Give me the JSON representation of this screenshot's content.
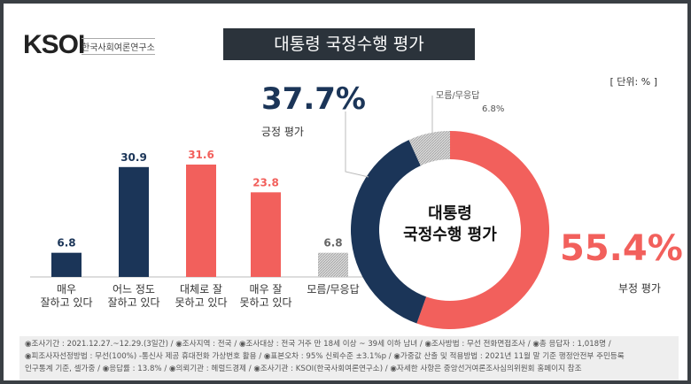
{
  "header": {
    "logo": "KSOI",
    "logo_sub": "한국사회여론연구소",
    "title": "대통령 국정수행 평가",
    "unit": "[ 단위: % ]"
  },
  "donut": {
    "center_label_1": "대통령",
    "center_label_2": "국정수행 평가",
    "positive": {
      "label": "긍정 평가",
      "value": 37.7,
      "pct": "37.7%",
      "color": "#1b3558"
    },
    "negative": {
      "label": "부정 평가",
      "value": 55.4,
      "pct": "55.4%",
      "color": "#f2605c"
    },
    "dontknow": {
      "label": "모름/무응답",
      "value": 6.8,
      "pct": "6.8%",
      "color": "#c8c8c8"
    }
  },
  "chart_data": {
    "type": "bar",
    "categories": [
      "매우\n잘하고 있다",
      "어느 정도\n잘하고 있다",
      "대체로 잘\n못하고 있다",
      "매우 잘\n못하고 있다",
      "모름/무응답"
    ],
    "values": [
      6.8,
      30.9,
      31.6,
      23.8,
      6.8
    ],
    "labels": [
      "6.8",
      "30.9",
      "31.6",
      "23.8",
      "6.8"
    ],
    "colors": [
      "#1b3558",
      "#1b3558",
      "#f2605c",
      "#f2605c",
      "#c8c8c8"
    ],
    "ylim": [
      0,
      35
    ]
  },
  "footer": [
    "◉조사기간 : 2021.12.27.~12.29.(3일간)  / ◉조사지역 : 전국 / ◉조사대상 : 전국 거주 만 18세 이상 ~ 39세 이하 남녀 / ◉조사방법 : 무선 전화면접조사 / ◉총 응답자 : 1,018명 /",
    "◉피조사자선정방법 : 무선(100%) -통신사 제공 휴대전화 가상번호 활용 / ◉표본오차 : 95% 신뢰수준 ±3.1%p / ◉가중값 산출 및 적용방법 : 2021년 11월 말 기준 행정안전부 주민등록",
    "인구통계 기준, 셀가중 / ◉응답률 : 13.8% / ◉의뢰기관 : 헤럴드경제 / ◉조사기관 : KSOI(한국사회여론연구소) / ◉자세한 사항은 중앙선거여론조사심의위원회 홈페이지 참조"
  ]
}
